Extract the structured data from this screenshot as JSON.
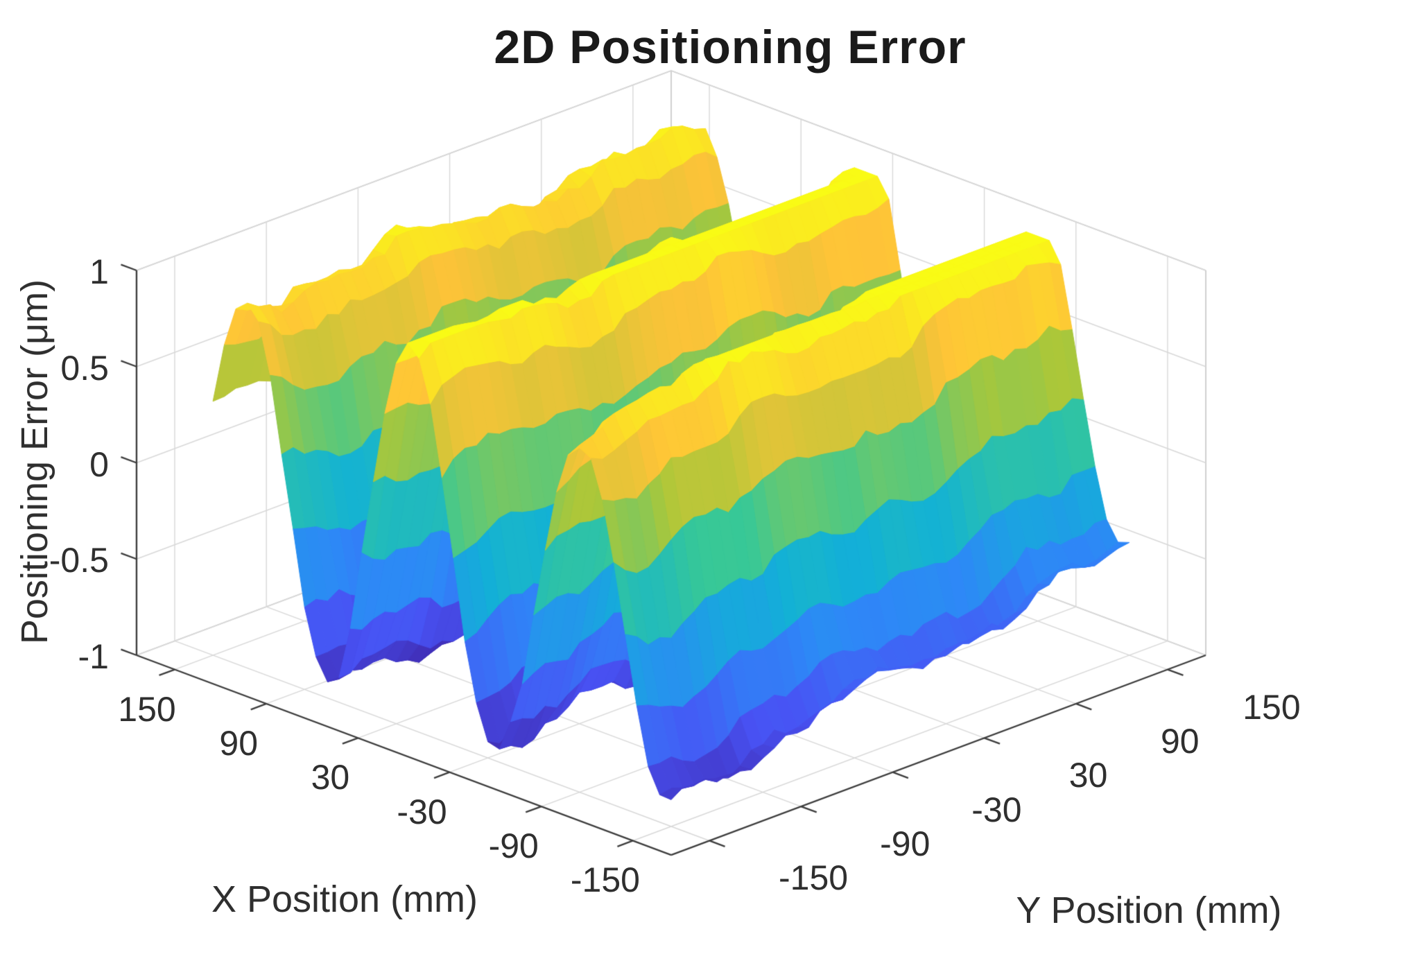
{
  "figure": {
    "background": "#ffffff",
    "axis_color": "#3d3d3d",
    "grid_color": "#d8d8d8",
    "box_color": "#c6c6c6",
    "text_color": "#2f2f2f",
    "title_color": "#1a1a1a"
  },
  "chart_data": {
    "type": "surface",
    "title": "2D Positioning Error",
    "xlabel": "X Position (mm)",
    "ylabel": "Y Position (mm)",
    "zlabel": "Positioning Error (μm)",
    "x_ticks": [
      -150,
      -90,
      -30,
      30,
      90,
      150
    ],
    "y_ticks": [
      -150,
      -90,
      -30,
      30,
      90,
      150
    ],
    "z_ticks": [
      -1,
      -0.5,
      0,
      0.5,
      1
    ],
    "x_data_range_mm": [
      -150,
      150
    ],
    "y_data_range_mm": [
      -150,
      150
    ],
    "axis_box_range_mm": [
      -175,
      175
    ],
    "z_range_um": [
      -1,
      1
    ],
    "grid": true,
    "view": {
      "azimuth_deg": -37.5,
      "elevation_deg": 30,
      "projection": "orthographic"
    },
    "colormap": "parula",
    "colormap_stops": [
      "#3E26A8",
      "#4852F4",
      "#2E87F7",
      "#12B1D6",
      "#37C897",
      "#ABC739",
      "#FEC338",
      "#F9FB15"
    ],
    "surface_model": {
      "description": "Positioning error surface: three noisy ridges parallel to the Y axis; z ≈ A(x)·cos(2π(x−20)/110) + corner lift + undulation + noise (μm)",
      "amplitude_base_um": 0.88,
      "amplitude_center_boost_um": 0.1,
      "period_mm": 110,
      "phase_peak_mm": 20,
      "ridge_crest_x_mm": [
        130,
        20,
        -90
      ],
      "valley_x_mm": [
        75,
        -35,
        -145
      ],
      "back_right_lift_um": 0.4,
      "undulation_amplitude_um": 0.05,
      "noise_amplitude_um": 0.07,
      "grid_points": 41,
      "noise_seed": 20481386
    }
  }
}
